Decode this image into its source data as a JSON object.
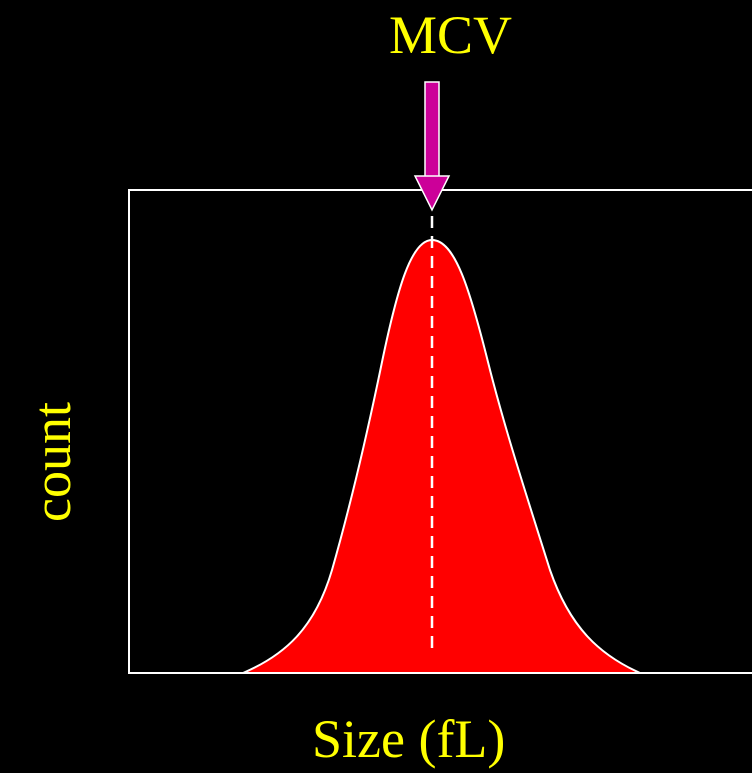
{
  "labels": {
    "mcv": "MCV",
    "x_axis": "Size (fL)",
    "y_axis": "count"
  },
  "colors": {
    "background": "#000000",
    "text": "#ffff00",
    "curve_fill": "#ff0000",
    "outline": "#ffffff",
    "arrow": "#cc0099"
  }
}
